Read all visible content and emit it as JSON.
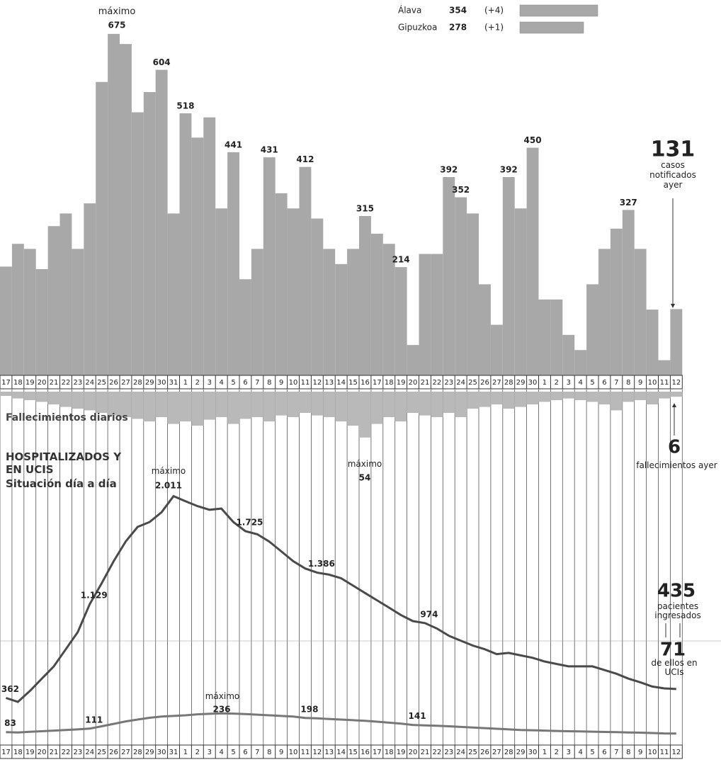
{
  "chart_data": [
    {
      "type": "bar",
      "categories": [
        "17",
        "18",
        "19",
        "20",
        "21",
        "22",
        "23",
        "24",
        "25",
        "26",
        "27",
        "28",
        "29",
        "30",
        "31",
        "1",
        "2",
        "3",
        "4",
        "5",
        "6",
        "7",
        "8",
        "9",
        "10",
        "11",
        "12",
        "13",
        "14",
        "15",
        "16",
        "17",
        "18",
        "19",
        "20",
        "21",
        "22",
        "23",
        "24",
        "25",
        "26",
        "27",
        "28",
        "29",
        "30",
        "1",
        "2",
        "3",
        "4",
        "5",
        "6",
        "7",
        "8",
        "9",
        "10",
        "11",
        "12"
      ],
      "values": [
        215,
        260,
        250,
        210,
        295,
        320,
        250,
        340,
        580,
        675,
        655,
        520,
        560,
        604,
        320,
        518,
        470,
        510,
        330,
        441,
        190,
        250,
        431,
        360,
        330,
        412,
        310,
        250,
        220,
        250,
        315,
        280,
        260,
        214,
        60,
        240,
        240,
        392,
        352,
        320,
        180,
        100,
        392,
        330,
        450,
        150,
        150,
        80,
        50,
        180,
        250,
        290,
        327,
        250,
        130,
        30,
        131
      ],
      "value_labels": [
        null,
        null,
        null,
        null,
        null,
        null,
        null,
        null,
        null,
        "675",
        null,
        null,
        null,
        "604",
        null,
        "518",
        null,
        null,
        null,
        "441",
        null,
        null,
        "431",
        null,
        null,
        "412",
        null,
        null,
        null,
        null,
        "315",
        null,
        null,
        "214",
        null,
        null,
        null,
        "392",
        "352",
        null,
        null,
        null,
        "392",
        null,
        "450",
        null,
        null,
        null,
        null,
        null,
        null,
        null,
        "327",
        null,
        null,
        null,
        "131"
      ],
      "color": "#a8a8a8",
      "ylim": [
        0,
        700
      ],
      "annotations": [
        "máximo",
        "casos notificados ayer"
      ],
      "legend": [
        {
          "name": "Álava",
          "value": 354,
          "change": "(+4)"
        },
        {
          "name": "Gipuzkoa",
          "value": 278,
          "change": "(+1)"
        }
      ]
    },
    {
      "type": "bar",
      "title": "Fallecimientos diarios",
      "values": [
        5,
        8,
        10,
        12,
        15,
        18,
        20,
        22,
        25,
        28,
        30,
        32,
        35,
        30,
        38,
        35,
        40,
        33,
        30,
        38,
        32,
        30,
        35,
        28,
        30,
        25,
        28,
        30,
        35,
        40,
        54,
        38,
        30,
        35,
        25,
        28,
        30,
        25,
        30,
        20,
        18,
        15,
        20,
        18,
        15,
        12,
        10,
        8,
        10,
        12,
        15,
        22,
        12,
        10,
        15,
        8,
        6
      ],
      "value_labels": [
        null,
        null,
        null,
        null,
        null,
        null,
        null,
        null,
        null,
        null,
        null,
        null,
        null,
        null,
        null,
        null,
        null,
        null,
        null,
        null,
        null,
        null,
        null,
        null,
        null,
        null,
        null,
        null,
        null,
        null,
        "54",
        null,
        null,
        null,
        null,
        null,
        null,
        null,
        null,
        null,
        null,
        null,
        null,
        null,
        null,
        null,
        null,
        null,
        null,
        null,
        null,
        null,
        null,
        null,
        null,
        null,
        "6"
      ],
      "color": "#b9b9b9",
      "ylim": [
        0,
        60
      ],
      "annotations": [
        "máximo",
        "fallecimientos ayer"
      ]
    },
    {
      "type": "line",
      "title": "HOSPITALIZADOS Y EN UCIS",
      "subtitle": "Situación día a día",
      "categories": [
        "17",
        "18",
        "19",
        "20",
        "21",
        "22",
        "23",
        "24",
        "25",
        "26",
        "27",
        "28",
        "29",
        "30",
        "31",
        "1",
        "2",
        "3",
        "4",
        "5",
        "6",
        "7",
        "8",
        "9",
        "10",
        "11",
        "12",
        "13",
        "14",
        "15",
        "16",
        "17",
        "18",
        "19",
        "20",
        "21",
        "22",
        "23",
        "24",
        "25",
        "26",
        "27",
        "28",
        "29",
        "30",
        "1",
        "2",
        "3",
        "4",
        "5",
        "6",
        "7",
        "8",
        "9",
        "10",
        "11",
        "12"
      ],
      "series": [
        {
          "color": "#4a4a4a",
          "values": [
            362,
            330,
            420,
            520,
            620,
            760,
            900,
            1129,
            1300,
            1480,
            1640,
            1760,
            1800,
            1880,
            2011,
            1970,
            1930,
            1900,
            1910,
            1800,
            1725,
            1700,
            1640,
            1560,
            1480,
            1420,
            1386,
            1370,
            1340,
            1280,
            1220,
            1160,
            1100,
            1040,
            990,
            974,
            930,
            870,
            830,
            790,
            760,
            720,
            730,
            710,
            690,
            660,
            640,
            620,
            620,
            620,
            590,
            560,
            520,
            490,
            455,
            440,
            435
          ],
          "value_labels": [
            "362",
            null,
            null,
            null,
            null,
            null,
            null,
            "1.129",
            null,
            null,
            null,
            null,
            null,
            null,
            "2.011",
            null,
            null,
            null,
            null,
            null,
            "1.725",
            null,
            null,
            null,
            null,
            null,
            "1.386",
            null,
            null,
            null,
            null,
            null,
            null,
            null,
            null,
            "974",
            null,
            null,
            null,
            null,
            null,
            null,
            null,
            null,
            null,
            null,
            null,
            null,
            null,
            null,
            null,
            null,
            null,
            null,
            null,
            null,
            "435"
          ]
        },
        {
          "color": "#777777",
          "values": [
            83,
            80,
            85,
            90,
            95,
            100,
            105,
            111,
            130,
            150,
            170,
            185,
            200,
            210,
            215,
            220,
            228,
            232,
            236,
            234,
            230,
            225,
            220,
            215,
            210,
            198,
            195,
            190,
            185,
            180,
            175,
            168,
            160,
            152,
            141,
            138,
            135,
            130,
            125,
            120,
            115,
            110,
            105,
            100,
            98,
            95,
            92,
            90,
            88,
            86,
            84,
            82,
            80,
            78,
            75,
            72,
            71
          ],
          "value_labels": [
            "83",
            null,
            null,
            null,
            null,
            null,
            null,
            "111",
            null,
            null,
            null,
            null,
            null,
            null,
            null,
            null,
            null,
            null,
            "236",
            null,
            null,
            null,
            null,
            null,
            null,
            "198",
            null,
            null,
            null,
            null,
            null,
            null,
            null,
            null,
            "141",
            null,
            null,
            null,
            null,
            null,
            null,
            null,
            null,
            null,
            null,
            null,
            null,
            null,
            null,
            null,
            null,
            null,
            null,
            null,
            null,
            null,
            "71"
          ]
        }
      ],
      "ylim": [
        0,
        2200
      ],
      "annotations": [
        "máximo",
        "máximo",
        "pacientes ingresados",
        "de ellos en UCIs"
      ]
    }
  ]
}
